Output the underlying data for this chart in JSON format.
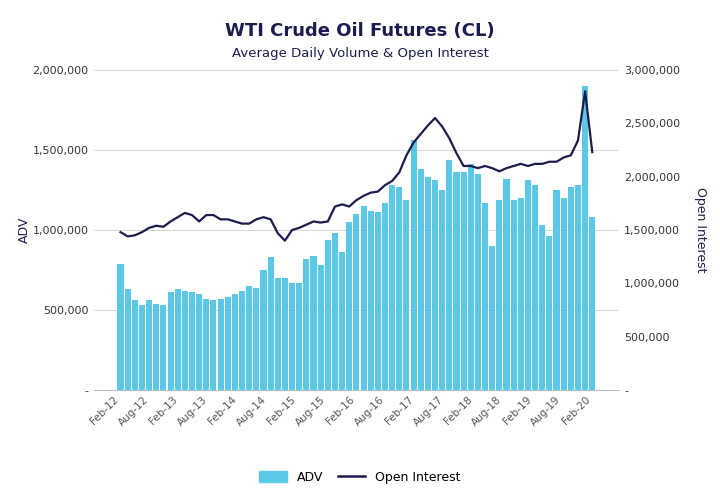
{
  "title": "WTI Crude Oil Futures (CL)",
  "subtitle": "Average Daily Volume & Open Interest",
  "title_color": "#1c1c4e",
  "subtitle_color": "#1c1c4e",
  "bar_color": "#5bc8e8",
  "line_color": "#1c1c4e",
  "background_color": "#ffffff",
  "ylabel_left": "ADV",
  "ylabel_right": "Open Interest",
  "ylim_left": [
    0,
    2000000
  ],
  "ylim_right": [
    0,
    3000000
  ],
  "yticks_left": [
    0,
    500000,
    1000000,
    1500000,
    2000000
  ],
  "yticks_right": [
    0,
    500000,
    1000000,
    1500000,
    2000000,
    2500000,
    3000000
  ],
  "xtick_labels": [
    "Feb-12",
    "Aug-12",
    "Feb-13",
    "Aug-13",
    "Feb-14",
    "Aug-14",
    "Feb-15",
    "Aug-15",
    "Feb-16",
    "Aug-16",
    "Feb-17",
    "Aug-17",
    "Feb-18",
    "Aug-18",
    "Feb-19",
    "Aug-19",
    "Feb-20"
  ],
  "adv": [
    790000,
    630000,
    560000,
    530000,
    560000,
    540000,
    530000,
    610000,
    630000,
    620000,
    610000,
    600000,
    570000,
    560000,
    570000,
    580000,
    600000,
    620000,
    650000,
    640000,
    750000,
    830000,
    700000,
    700000,
    670000,
    670000,
    820000,
    840000,
    780000,
    940000,
    980000,
    860000,
    1050000,
    1100000,
    1150000,
    1120000,
    1110000,
    1170000,
    1280000,
    1270000,
    1190000,
    1560000,
    1380000,
    1330000,
    1310000,
    1250000,
    1440000,
    1360000,
    1360000,
    1410000,
    1350000,
    1170000,
    900000,
    1190000,
    1320000,
    1190000,
    1200000,
    1310000,
    1280000,
    1030000,
    960000,
    1250000,
    1200000,
    1270000,
    1280000,
    1900000,
    1080000
  ],
  "open_interest": [
    1480000,
    1440000,
    1450000,
    1480000,
    1520000,
    1540000,
    1530000,
    1580000,
    1620000,
    1660000,
    1640000,
    1580000,
    1640000,
    1640000,
    1600000,
    1600000,
    1580000,
    1560000,
    1560000,
    1600000,
    1620000,
    1600000,
    1470000,
    1400000,
    1500000,
    1520000,
    1550000,
    1580000,
    1570000,
    1580000,
    1720000,
    1740000,
    1720000,
    1780000,
    1820000,
    1850000,
    1860000,
    1920000,
    1960000,
    2040000,
    2200000,
    2320000,
    2400000,
    2480000,
    2550000,
    2470000,
    2360000,
    2220000,
    2100000,
    2100000,
    2080000,
    2100000,
    2080000,
    2050000,
    2080000,
    2100000,
    2120000,
    2100000,
    2120000,
    2120000,
    2140000,
    2140000,
    2180000,
    2200000,
    2340000,
    2800000,
    2230000
  ],
  "legend_labels": [
    "ADV",
    "Open Interest"
  ],
  "grid_color": "#d0d0d0",
  "grid_linewidth": 0.6
}
